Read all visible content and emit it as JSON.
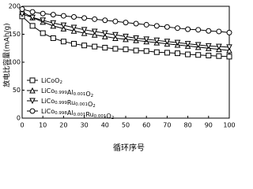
{
  "chart_data": {
    "type": "line",
    "x_label": "循环序号",
    "y_label": "放电比容量(mAh/g)",
    "x": [
      0,
      5,
      10,
      15,
      20,
      25,
      30,
      35,
      40,
      45,
      50,
      55,
      60,
      65,
      70,
      75,
      80,
      85,
      90,
      95,
      100
    ],
    "series": [
      {
        "name": "LiCoO2",
        "color": "#000000",
        "marker": "square",
        "values": [
          182,
          165,
          152,
          143,
          137,
          133,
          130,
          128,
          126,
          124,
          123,
          121,
          120,
          118,
          117,
          116,
          114,
          113,
          112,
          111,
          110
        ]
      },
      {
        "name": "LiCo0.999Al0.001O2",
        "color": "#000000",
        "marker": "triangle-up",
        "values": [
          190,
          180,
          172,
          165,
          160,
          156,
          152,
          149,
          146,
          143,
          141,
          139,
          137,
          135,
          133,
          131,
          129,
          127,
          125,
          123,
          121
        ]
      },
      {
        "name": "LiCo0.999Ru0.001O2",
        "color": "#000000",
        "marker": "triangle-down",
        "values": [
          186,
          180,
          175,
          170,
          166,
          162,
          158,
          155,
          152,
          149,
          146,
          143,
          141,
          139,
          137,
          135,
          133,
          131,
          129,
          128,
          127
        ]
      },
      {
        "name": "LiCo0.998Al0.001Ru0.001O2",
        "color": "#000000",
        "marker": "circle",
        "values": [
          195,
          190,
          187,
          185,
          183,
          181,
          179,
          177,
          175,
          173,
          171,
          169,
          167,
          165,
          163,
          161,
          159,
          158,
          156,
          155,
          153
        ]
      }
    ],
    "xlim": [
      0,
      100
    ],
    "xticks": [
      0,
      10,
      20,
      30,
      40,
      50,
      60,
      70,
      80,
      90,
      100
    ],
    "ylim": [
      0,
      200
    ],
    "yticks": [
      0,
      50,
      100,
      150,
      200
    ],
    "legend": "lower-left"
  }
}
